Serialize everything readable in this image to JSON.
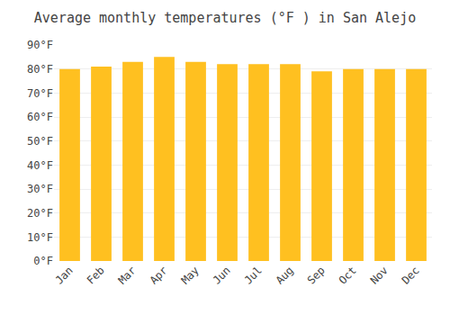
{
  "chart_data": {
    "type": "bar",
    "title": "Average monthly temperatures (°F ) in San Alejo",
    "categories": [
      "Jan",
      "Feb",
      "Mar",
      "Apr",
      "May",
      "Jun",
      "Jul",
      "Aug",
      "Sep",
      "Oct",
      "Nov",
      "Dec"
    ],
    "values": [
      80,
      81,
      83,
      85,
      83,
      82,
      82,
      82,
      79,
      80,
      80,
      80
    ],
    "color": "#FFC020",
    "ylim": [
      0,
      90
    ],
    "yticks": [
      {
        "value": 0,
        "label": "0°F"
      },
      {
        "value": 10,
        "label": "10°F"
      },
      {
        "value": 20,
        "label": "20°F"
      },
      {
        "value": 30,
        "label": "30°F"
      },
      {
        "value": 40,
        "label": "40°F"
      },
      {
        "value": 50,
        "label": "50°F"
      },
      {
        "value": 60,
        "label": "60°F"
      },
      {
        "value": 70,
        "label": "70°F"
      },
      {
        "value": 80,
        "label": "80°F"
      },
      {
        "value": 90,
        "label": "90°F"
      }
    ],
    "grid": true
  }
}
